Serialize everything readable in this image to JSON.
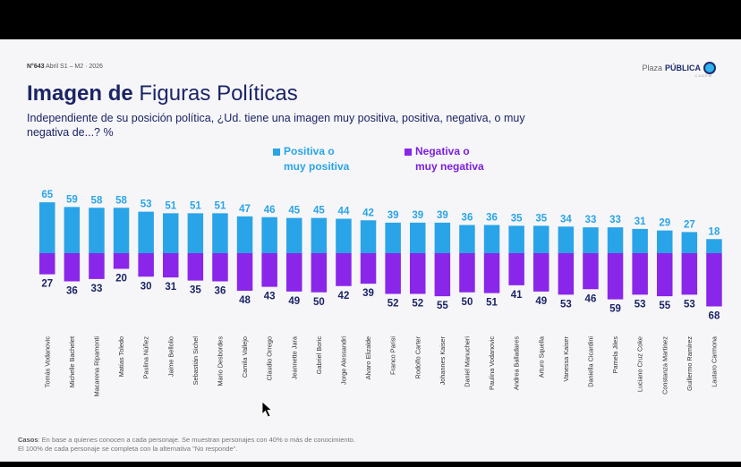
{
  "header": {
    "issue": "N°643",
    "dates": "Abril S1 – M2 · 2026",
    "brand_prefix": "Plaza",
    "brand_bold": "PÚBLICA",
    "brand_sub": "CADEM"
  },
  "title": {
    "bold": "Imagen de",
    "regular": "Figuras Políticas"
  },
  "subtitle": "Independiente de su posición política, ¿Ud. tiene una imagen muy positiva, positiva, negativa, o muy negativa de...? %",
  "legend": {
    "positive": [
      "Positiva o",
      "muy positiva"
    ],
    "negative": [
      "Negativa o",
      "muy negativa"
    ]
  },
  "colors": {
    "positive": "#2aa4e8",
    "negative": "#8a26ea",
    "positive_text": "#2aa4e8",
    "negative_text": "#1c2466"
  },
  "chart_data": {
    "type": "bar",
    "title": "Imagen de Figuras Políticas",
    "ylabel": "%",
    "categories": [
      "Tomás Vodanovic",
      "Michelle Bachelet",
      "Macarena Ripamonti",
      "Matías Toledo",
      "Paulina Núñez",
      "Jaime Bellolio",
      "Sebastián Sichel",
      "Mario Desbordes",
      "Camila Vallejo",
      "Claudio Orrego",
      "Jeannette Jara",
      "Gabriel Boric",
      "Jorge Alessandri",
      "Alvaro Elizalde",
      "Franco Parisi",
      "Rodolfo Carter",
      "Johannes Kaiser",
      "Daniel Manucheri",
      "Paulina Vodanovic",
      "Andrea Balladares",
      "Arturo Squella",
      "Vanessa Kaiser",
      "Daniella Cicardini",
      "Pamela Jiles",
      "Luciano Cruz Coke",
      "Constanza Martinez",
      "Guillermo Ramírez",
      "Lautaro Carmona"
    ],
    "series": [
      {
        "name": "Positiva o muy positiva",
        "values": [
          65,
          59,
          58,
          58,
          53,
          51,
          51,
          51,
          47,
          46,
          45,
          45,
          44,
          42,
          39,
          39,
          39,
          36,
          36,
          35,
          35,
          34,
          33,
          33,
          31,
          29,
          27,
          18
        ]
      },
      {
        "name": "Negativa o muy negativa",
        "values": [
          27,
          36,
          33,
          20,
          30,
          31,
          35,
          36,
          48,
          43,
          49,
          50,
          42,
          39,
          52,
          52,
          55,
          50,
          51,
          41,
          49,
          53,
          46,
          59,
          53,
          55,
          53,
          68
        ]
      }
    ],
    "legend": "top-center"
  },
  "footnote": {
    "label": "Casos",
    "line1": ": En base a quienes conocen a cada personaje. Se muestran personajes con 40% o más de conocimiento.",
    "line2": "El 100% de cada personaje se completa con la alternativa \"No responde\"."
  }
}
